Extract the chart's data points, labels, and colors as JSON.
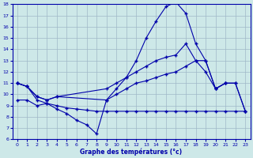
{
  "xlabel": "Graphe des températures (°c)",
  "xlim": [
    -0.5,
    23.5
  ],
  "ylim": [
    6,
    18
  ],
  "yticks": [
    6,
    7,
    8,
    9,
    10,
    11,
    12,
    13,
    14,
    15,
    16,
    17,
    18
  ],
  "xticks": [
    0,
    1,
    2,
    3,
    4,
    5,
    6,
    7,
    8,
    9,
    10,
    11,
    12,
    13,
    14,
    15,
    16,
    17,
    18,
    19,
    20,
    21,
    22,
    23
  ],
  "bg_color": "#cde8e8",
  "line_color": "#0000aa",
  "grid_color": "#a0b8c8",
  "line1": {
    "x": [
      0,
      1,
      2,
      3,
      4,
      5,
      6,
      7,
      8,
      9,
      10,
      11,
      12,
      13,
      14,
      15,
      16,
      17,
      18,
      19,
      20,
      21
    ],
    "y": [
      11.0,
      10.7,
      9.5,
      9.2,
      8.7,
      8.3,
      7.7,
      7.3,
      6.5,
      9.5,
      10.5,
      11.5,
      13.0,
      15.0,
      16.5,
      17.8,
      18.2,
      17.2,
      14.5,
      13.0,
      10.5,
      11.0
    ]
  },
  "line2": {
    "x": [
      0,
      1,
      2,
      3,
      4,
      9,
      10,
      11,
      12,
      13,
      14,
      15,
      16,
      17,
      18,
      19,
      20,
      21,
      22,
      23
    ],
    "y": [
      11.0,
      10.7,
      9.8,
      9.5,
      9.8,
      10.5,
      11.0,
      11.5,
      12.0,
      12.5,
      13.0,
      13.3,
      13.5,
      14.5,
      13.0,
      12.0,
      10.5,
      11.0,
      11.0,
      8.5
    ]
  },
  "line3": {
    "x": [
      0,
      1,
      2,
      3,
      4,
      9,
      10,
      11,
      12,
      13,
      14,
      15,
      16,
      17,
      18,
      19,
      20,
      21,
      22,
      23
    ],
    "y": [
      11.0,
      10.7,
      9.8,
      9.5,
      9.8,
      9.5,
      10.0,
      10.5,
      11.0,
      11.2,
      11.5,
      11.8,
      12.0,
      12.5,
      13.0,
      13.0,
      10.5,
      11.0,
      11.0,
      8.5
    ]
  },
  "line4": {
    "x": [
      0,
      1,
      2,
      3,
      4,
      5,
      6,
      7,
      8,
      9,
      10,
      11,
      12,
      13,
      14,
      15,
      16,
      17,
      18,
      19,
      20,
      21,
      22,
      23
    ],
    "y": [
      9.5,
      9.5,
      9.0,
      9.2,
      9.0,
      8.8,
      8.7,
      8.6,
      8.5,
      8.5,
      8.5,
      8.5,
      8.5,
      8.5,
      8.5,
      8.5,
      8.5,
      8.5,
      8.5,
      8.5,
      8.5,
      8.5,
      8.5,
      8.5
    ]
  }
}
